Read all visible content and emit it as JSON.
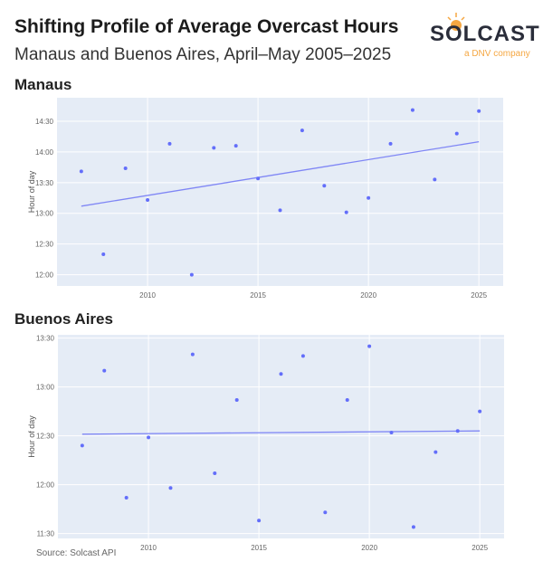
{
  "title": "Shifting Profile of Average Overcast Hours",
  "subtitle": "Manaus and Buenos Aires, April–May 2005–2025",
  "logo": {
    "name": "SOLCAST",
    "tagline": "a DNV company"
  },
  "source": "Source: Solcast API",
  "colors": {
    "marker": "#636efa",
    "trend": "#7f86f5",
    "plot_bg": "#e5ecf6",
    "logo_accent": "#f5a742"
  },
  "chart_data": [
    {
      "type": "scatter",
      "title": "Manaus",
      "xlabel": "",
      "ylabel": "Hour of day",
      "xlim": [
        2005.9,
        2026.1
      ],
      "ylim": [
        "11:49",
        "14:53"
      ],
      "x_ticks": [
        "2010",
        "2015",
        "2020",
        "2025"
      ],
      "y_ticks": [
        "12:00",
        "12:30",
        "13:00",
        "13:30",
        "14:00",
        "14:30"
      ],
      "grid": true,
      "x": [
        2007,
        2008,
        2009,
        2010,
        2011,
        2012,
        2013,
        2014,
        2015,
        2016,
        2017,
        2018,
        2019,
        2020,
        2021,
        2022,
        2023,
        2024,
        2025
      ],
      "y": [
        "13:41",
        "12:20",
        "13:44",
        "13:13",
        "14:08",
        "12:00",
        "14:04",
        "14:06",
        "13:34",
        "13:03",
        "14:21",
        "13:27",
        "13:01",
        "13:15",
        "14:08",
        "14:41",
        "13:33",
        "14:18",
        "14:40"
      ],
      "trend": {
        "x": [
          2007,
          2025
        ],
        "y": [
          "13:07",
          "14:10"
        ]
      }
    },
    {
      "type": "scatter",
      "title": "Buenos Aires",
      "xlabel": "",
      "ylabel": "Hour of day",
      "xlim": [
        2005.9,
        2026.1
      ],
      "ylim": [
        "11:27",
        "13:32"
      ],
      "x_ticks": [
        "2010",
        "2015",
        "2020",
        "2025"
      ],
      "y_ticks": [
        "11:30",
        "12:00",
        "12:30",
        "13:00",
        "13:30"
      ],
      "grid": true,
      "x": [
        2007,
        2008,
        2009,
        2010,
        2011,
        2012,
        2013,
        2014,
        2015,
        2016,
        2017,
        2018,
        2019,
        2020,
        2021,
        2022,
        2023,
        2024,
        2025
      ],
      "y": [
        "12:24",
        "13:10",
        "11:52",
        "12:29",
        "11:58",
        "13:20",
        "12:07",
        "12:52",
        "11:38",
        "13:08",
        "13:19",
        "11:43",
        "12:52",
        "13:25",
        "12:32",
        "11:34",
        "12:20",
        "12:33",
        "12:45"
      ],
      "trend": {
        "x": [
          2007,
          2025
        ],
        "y": [
          "12:31",
          "12:33"
        ]
      }
    }
  ]
}
